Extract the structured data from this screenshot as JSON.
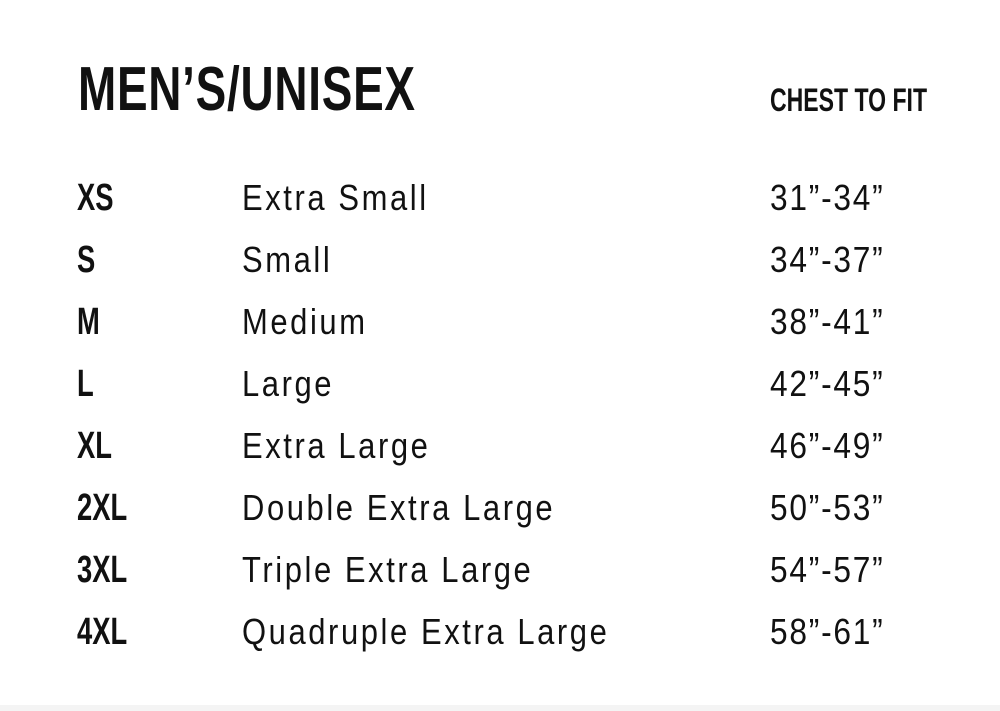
{
  "title": "MEN’S/UNISEX",
  "column_header": "CHEST TO FIT",
  "sizes": [
    {
      "code": "XS",
      "name": "Extra Small",
      "chest": "31”-34”"
    },
    {
      "code": "S",
      "name": "Small",
      "chest": "34”-37”"
    },
    {
      "code": "M",
      "name": "Medium",
      "chest": "38”-41”"
    },
    {
      "code": "L",
      "name": "Large",
      "chest": "42”-45”"
    },
    {
      "code": "XL",
      "name": "Extra Large",
      "chest": "46”-49”"
    },
    {
      "code": "2XL",
      "name": "Double Extra Large",
      "chest": "50”-53”"
    },
    {
      "code": "3XL",
      "name": "Triple Extra Large",
      "chest": "54”-57”"
    },
    {
      "code": "4XL",
      "name": "Quadruple Extra Large",
      "chest": "58”-61”"
    }
  ]
}
